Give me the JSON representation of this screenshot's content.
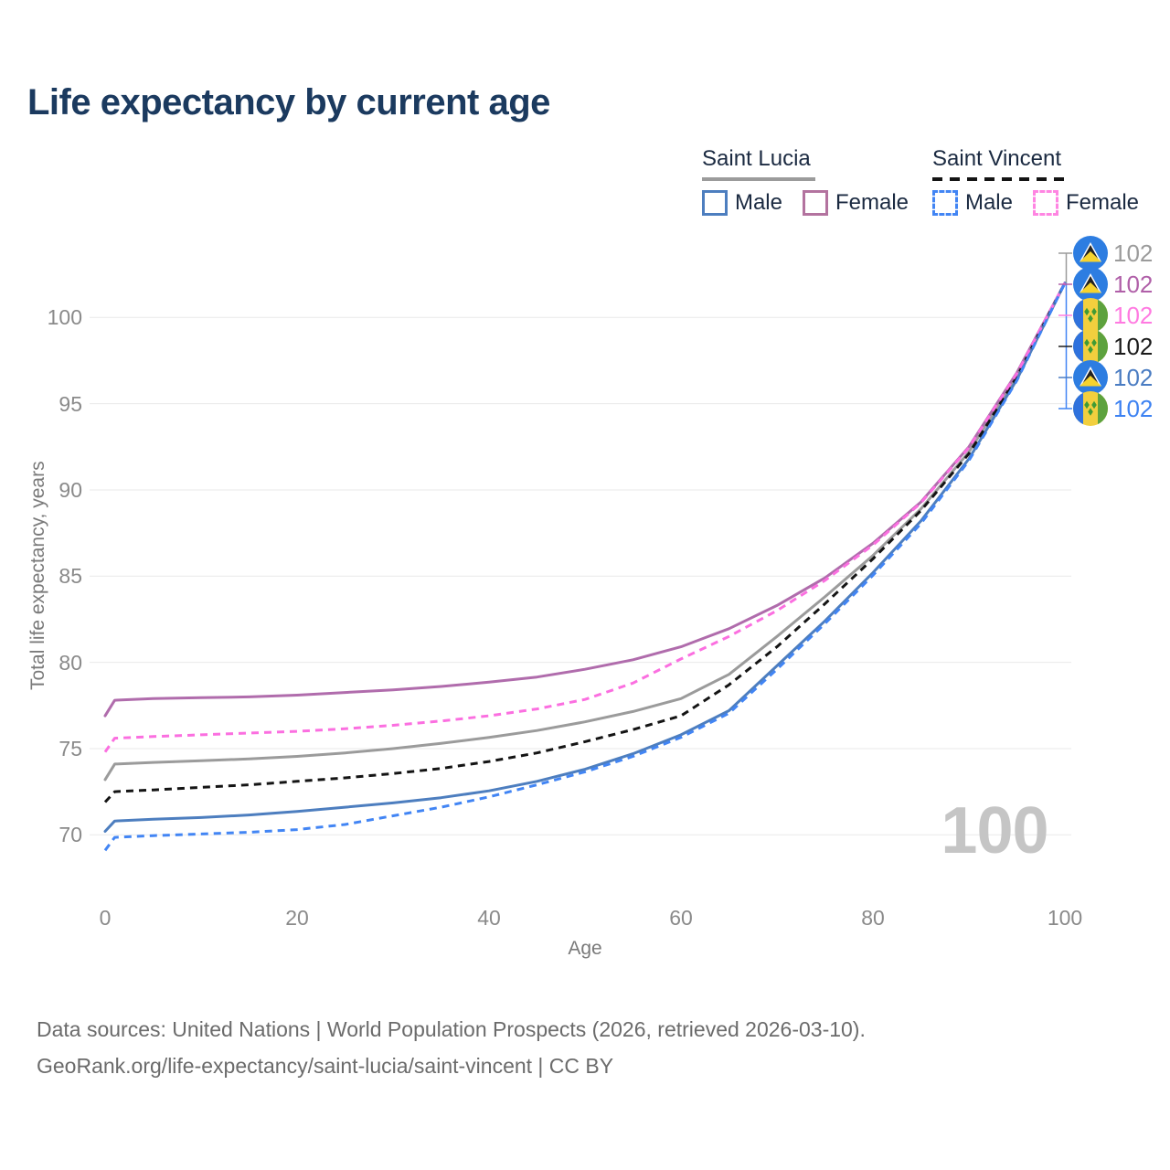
{
  "title": "Life expectancy by current age",
  "legend": {
    "groups": [
      {
        "title": "Saint Lucia",
        "line_style": "solid",
        "line_color": "#9b9b9b",
        "items": [
          {
            "label": "Male",
            "swatch_color": "#4d7ebf",
            "swatch_style": "solid"
          },
          {
            "label": "Female",
            "swatch_color": "#b3739f",
            "swatch_style": "solid"
          }
        ]
      },
      {
        "title": "Saint Vincent",
        "line_style": "dashed",
        "line_color": "#141414",
        "items": [
          {
            "label": "Male",
            "swatch_color": "#4285f4",
            "swatch_style": "dashed"
          },
          {
            "label": "Female",
            "swatch_color": "#ff85e2",
            "swatch_style": "dashed"
          }
        ]
      }
    ]
  },
  "chart_data": {
    "type": "line",
    "title": "Life expectancy by current age",
    "xlabel": "Age",
    "ylabel": "Total life expectancy, years",
    "xticks": [
      0,
      20,
      40,
      60,
      80,
      100
    ],
    "yticks": [
      70,
      75,
      80,
      85,
      90,
      95,
      100
    ],
    "xlim": [
      0,
      100
    ],
    "ylim": [
      68.5,
      103.5
    ],
    "grid": "horizontal",
    "legend_position": "top-right",
    "x": [
      0,
      1,
      5,
      10,
      15,
      20,
      25,
      30,
      35,
      40,
      45,
      50,
      55,
      60,
      65,
      70,
      75,
      80,
      85,
      90,
      95,
      100
    ],
    "series": [
      {
        "name": "Saint Lucia (total)",
        "color": "#9b9b9b",
        "dashed": false,
        "values": [
          73.2,
          74.1,
          74.2,
          74.3,
          74.4,
          74.55,
          74.75,
          75.0,
          75.3,
          75.65,
          76.05,
          76.55,
          77.15,
          77.9,
          79.3,
          81.5,
          83.8,
          86.2,
          88.9,
          92.2,
          96.6,
          102.0
        ]
      },
      {
        "name": "Saint Lucia Female",
        "color": "#b06cac",
        "dashed": false,
        "values": [
          76.9,
          77.8,
          77.9,
          77.95,
          78.0,
          78.1,
          78.25,
          78.4,
          78.6,
          78.85,
          79.15,
          79.6,
          80.15,
          80.9,
          81.95,
          83.3,
          84.9,
          86.9,
          89.3,
          92.5,
          96.8,
          102.0
        ]
      },
      {
        "name": "Saint Lucia Male",
        "color": "#4d7ebf",
        "dashed": false,
        "values": [
          70.2,
          70.8,
          70.9,
          71.0,
          71.15,
          71.35,
          71.6,
          71.85,
          72.15,
          72.55,
          73.1,
          73.8,
          74.7,
          75.8,
          77.2,
          79.8,
          82.4,
          85.2,
          88.2,
          91.8,
          96.4,
          102.0
        ]
      },
      {
        "name": "Saint Vincent (total)",
        "color": "#141414",
        "dashed": true,
        "values": [
          71.9,
          72.5,
          72.6,
          72.75,
          72.9,
          73.1,
          73.3,
          73.55,
          73.85,
          74.25,
          74.75,
          75.4,
          76.1,
          76.9,
          78.7,
          80.9,
          83.4,
          86.0,
          88.8,
          92.1,
          96.55,
          102.0
        ]
      },
      {
        "name": "Saint Vincent Female",
        "color": "#fb6fe0",
        "dashed": true,
        "values": [
          74.8,
          75.6,
          75.7,
          75.8,
          75.9,
          76.0,
          76.15,
          76.35,
          76.6,
          76.9,
          77.3,
          77.85,
          78.8,
          80.2,
          81.5,
          83.0,
          84.75,
          86.8,
          89.25,
          92.45,
          96.75,
          102.0
        ]
      },
      {
        "name": "Saint Vincent Male",
        "color": "#4285f4",
        "dashed": true,
        "values": [
          69.1,
          69.85,
          69.95,
          70.05,
          70.15,
          70.3,
          70.6,
          71.1,
          71.6,
          72.2,
          72.9,
          73.65,
          74.55,
          75.65,
          77.05,
          79.6,
          82.25,
          85.05,
          88.05,
          91.7,
          96.35,
          102.0
        ]
      }
    ]
  },
  "end_labels": [
    {
      "flag": "saint-lucia",
      "value": "102",
      "color": "#9b9b9b",
      "series": "Saint Lucia (total)"
    },
    {
      "flag": "saint-lucia",
      "value": "102",
      "color": "#b05fa8",
      "series": "Saint Lucia Female"
    },
    {
      "flag": "saint-vincent",
      "value": "102",
      "color": "#ff7ae1",
      "series": "Saint Vincent Female"
    },
    {
      "flag": "saint-vincent",
      "value": "102",
      "color": "#1a1a1a",
      "series": "Saint Vincent (total)"
    },
    {
      "flag": "saint-lucia",
      "value": "102",
      "color": "#4a7cc2",
      "series": "Saint Lucia Male"
    },
    {
      "flag": "saint-vincent",
      "value": "102",
      "color": "#3d82f2",
      "series": "Saint Vincent Male"
    }
  ],
  "watermark": "100",
  "footer": {
    "line1": "Data sources: United Nations | World Population Prospects (2026, retrieved 2026-03-10).",
    "line2": "GeoRank.org/life-expectancy/saint-lucia/saint-vincent | CC BY"
  }
}
